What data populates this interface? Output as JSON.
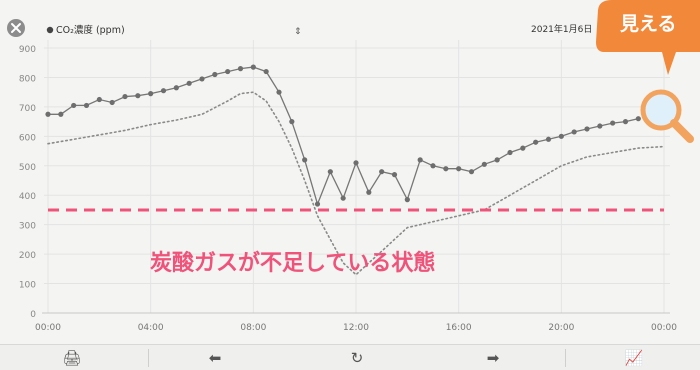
{
  "header": {
    "series_label": "CO₂濃度 (ppm)",
    "date": "2021年1月6日",
    "badge_text": "見える"
  },
  "annotation": {
    "threshold_label": "炭酸ガスが不足している状態"
  },
  "toolbar": {
    "icons": [
      "print-icon",
      "back-arrow-icon",
      "refresh-icon",
      "forward-arrow-icon",
      "line-chart-icon"
    ]
  },
  "colors": {
    "series": "#777777",
    "threshold": "#f0527a",
    "badge": "#f2883a",
    "magnifier": "#f2a35e"
  },
  "chart_data": {
    "type": "line",
    "x_tick_labels": [
      "00:00",
      "04:00",
      "08:00",
      "12:00",
      "16:00",
      "20:00",
      "00:00"
    ],
    "y_ticks": [
      0,
      100,
      200,
      300,
      400,
      500,
      600,
      700,
      800,
      900
    ],
    "xlim": [
      0,
      24
    ],
    "ylim": [
      0,
      900
    ],
    "grid": true,
    "series": [
      {
        "style": "solid-markers",
        "x": [
          0,
          0.5,
          1,
          1.5,
          2,
          2.5,
          3,
          3.5,
          4,
          4.5,
          5,
          5.5,
          6,
          6.5,
          7,
          7.5,
          8,
          8.5,
          9,
          9.5,
          10,
          10.5,
          11,
          11.5,
          12,
          12.5,
          13,
          13.5,
          14,
          14.5,
          15,
          15.5,
          16,
          16.5,
          17,
          17.5,
          18,
          18.5,
          19,
          19.5,
          20,
          20.5,
          21,
          21.5,
          22,
          22.5,
          23
        ],
        "y": [
          675,
          675,
          705,
          705,
          725,
          715,
          735,
          738,
          745,
          755,
          765,
          780,
          795,
          810,
          820,
          830,
          835,
          820,
          750,
          650,
          520,
          370,
          480,
          390,
          510,
          410,
          480,
          470,
          385,
          520,
          500,
          490,
          490,
          480,
          505,
          520,
          545,
          560,
          580,
          590,
          600,
          615,
          625,
          635,
          645,
          650,
          660
        ]
      },
      {
        "style": "dotted",
        "x": [
          0,
          1,
          2,
          3,
          4,
          5,
          6,
          7,
          7.5,
          8,
          8.5,
          9,
          9.5,
          10,
          10.5,
          11,
          11.5,
          12,
          12.5,
          13,
          13.5,
          14,
          15,
          16,
          17,
          18,
          19,
          20,
          21,
          22,
          23,
          24
        ],
        "y": [
          575,
          590,
          605,
          620,
          640,
          655,
          675,
          720,
          745,
          750,
          720,
          650,
          560,
          450,
          330,
          250,
          170,
          130,
          170,
          210,
          250,
          290,
          310,
          330,
          350,
          400,
          450,
          500,
          530,
          545,
          560,
          565
        ]
      }
    ],
    "threshold": 350
  }
}
